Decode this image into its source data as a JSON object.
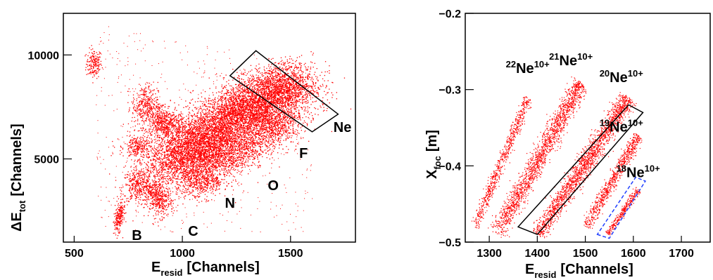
{
  "chart_data": [
    {
      "type": "scatter",
      "panel": "left",
      "xlabel": "E",
      "xlabel_sub": "resid",
      "xlabel_unit": "[Channels]",
      "ylabel": "ΔE",
      "ylabel_sub": "tot",
      "ylabel_unit": "[Channels]",
      "xlim": [
        450,
        1800
      ],
      "ylim": [
        1000,
        12000
      ],
      "xticks": [
        500,
        1000,
        1500
      ],
      "yticks": [
        5000,
        10000
      ],
      "xtick_labels": [
        "500",
        "1000",
        "1500"
      ],
      "ytick_labels": [
        "5000",
        "10000"
      ],
      "color": "#ff0000",
      "series": [
        {
          "name": "B",
          "blobs": [
            [
              590,
              9600,
              18,
              350,
              0
            ],
            [
              715,
              2500,
              8,
              250,
              0
            ],
            [
              700,
              2000,
              10,
              300,
              0
            ]
          ]
        },
        {
          "name": "C",
          "blobs": [
            [
              790,
              3750,
              35,
              420,
              0.15
            ],
            [
              865,
              3400,
              30,
              350,
              0.1
            ],
            [
              900,
              2900,
              28,
              350,
              0
            ],
            [
              790,
              5600,
              30,
              300,
              0
            ]
          ]
        },
        {
          "name": "N",
          "blobs": [
            [
              825,
              7600,
              30,
              500,
              0.1
            ],
            [
              900,
              7000,
              30,
              350,
              0
            ],
            [
              1000,
              4700,
              90,
              550,
              0.3
            ],
            [
              1090,
              3900,
              60,
              400,
              0.2
            ],
            [
              930,
              6600,
              40,
              250,
              0
            ]
          ]
        },
        {
          "name": "O",
          "blobs": [
            [
              1130,
              6100,
              150,
              800,
              0.45
            ],
            [
              1050,
              5700,
              90,
              600,
              0.3
            ],
            [
              1220,
              5300,
              80,
              550,
              0.3
            ]
          ]
        },
        {
          "name": "F",
          "blobs": [
            [
              1330,
              7500,
              140,
              750,
              0.45
            ],
            [
              1270,
              7300,
              80,
              500,
              0.3
            ],
            [
              1420,
              6600,
              70,
              500,
              0.3
            ]
          ]
        },
        {
          "name": "Ne",
          "blobs": [
            [
              1420,
              8700,
              90,
              500,
              0.4
            ],
            [
              1480,
              8200,
              70,
              400,
              0.3
            ]
          ]
        }
      ],
      "element_labels": [
        {
          "text": "B",
          "x": 790,
          "y": 1100
        },
        {
          "text": "C",
          "x": 1050,
          "y": 1300
        },
        {
          "text": "N",
          "x": 1220,
          "y": 2650
        },
        {
          "text": "O",
          "x": 1420,
          "y": 3500
        },
        {
          "text": "F",
          "x": 1560,
          "y": 5050
        },
        {
          "text": "Ne",
          "x": 1740,
          "y": 6300
        }
      ],
      "gate": {
        "color": "#000000",
        "points": [
          [
            1220,
            9000
          ],
          [
            1340,
            10200
          ],
          [
            1720,
            7150
          ],
          [
            1600,
            6300
          ]
        ]
      }
    },
    {
      "type": "scatter",
      "panel": "right",
      "xlabel": "E",
      "xlabel_sub": "resid",
      "xlabel_unit": "[Channels]",
      "ylabel": "X",
      "ylabel_sub": "foc",
      "ylabel_unit": "[m]",
      "xlim": [
        1250,
        1760
      ],
      "ylim": [
        -0.5,
        -0.2
      ],
      "xticks": [
        1300,
        1400,
        1500,
        1600,
        1700
      ],
      "yticks": [
        -0.5,
        -0.4,
        -0.3,
        -0.2
      ],
      "xtick_labels": [
        "1300",
        "1400",
        "1500",
        "1600",
        "1700"
      ],
      "ytick_labels": [
        "−0.5",
        "−0.4",
        "−0.3",
        "−0.2"
      ],
      "color": "#ff0000",
      "series": [
        {
          "name": "22Ne10+",
          "x_range": [
            1270,
            1380
          ],
          "y_range": [
            -0.48,
            -0.31
          ],
          "width": 8
        },
        {
          "name": "21Ne10+",
          "x_range": [
            1315,
            1490
          ],
          "y_range": [
            -0.49,
            -0.29
          ],
          "width": 14
        },
        {
          "name": "20Ne10+",
          "x_range": [
            1400,
            1590
          ],
          "y_range": [
            -0.49,
            -0.31
          ],
          "width": 14
        },
        {
          "name": "19Ne10+",
          "x_range": [
            1500,
            1610
          ],
          "y_range": [
            -0.48,
            -0.36
          ],
          "width": 9
        },
        {
          "name": "18Ne10+",
          "x_range": [
            1545,
            1610
          ],
          "y_range": [
            -0.49,
            -0.43
          ],
          "width": 5
        }
      ],
      "annotations": [
        {
          "mass": "22",
          "elem": "Ne",
          "charge": "10+",
          "x": 1380,
          "y": -0.278
        },
        {
          "mass": "21",
          "elem": "Ne",
          "charge": "10+",
          "x": 1470,
          "y": -0.268
        },
        {
          "mass": "20",
          "elem": "Ne",
          "charge": "10+",
          "x": 1575,
          "y": -0.29
        },
        {
          "mass": "19",
          "elem": "Ne",
          "charge": "10+",
          "x": 1575,
          "y": -0.355
        },
        {
          "mass": "18",
          "elem": "Ne",
          "charge": "10+",
          "x": 1610,
          "y": -0.415
        }
      ],
      "gate": {
        "color": "#000000",
        "points": [
          [
            1360,
            -0.48
          ],
          [
            1400,
            -0.49
          ],
          [
            1620,
            -0.33
          ],
          [
            1590,
            -0.32
          ]
        ]
      },
      "gate2": {
        "color": "#1f3fff",
        "style": "dashed",
        "points": [
          [
            1525,
            -0.49
          ],
          [
            1550,
            -0.495
          ],
          [
            1625,
            -0.42
          ],
          [
            1605,
            -0.415
          ]
        ]
      }
    }
  ]
}
